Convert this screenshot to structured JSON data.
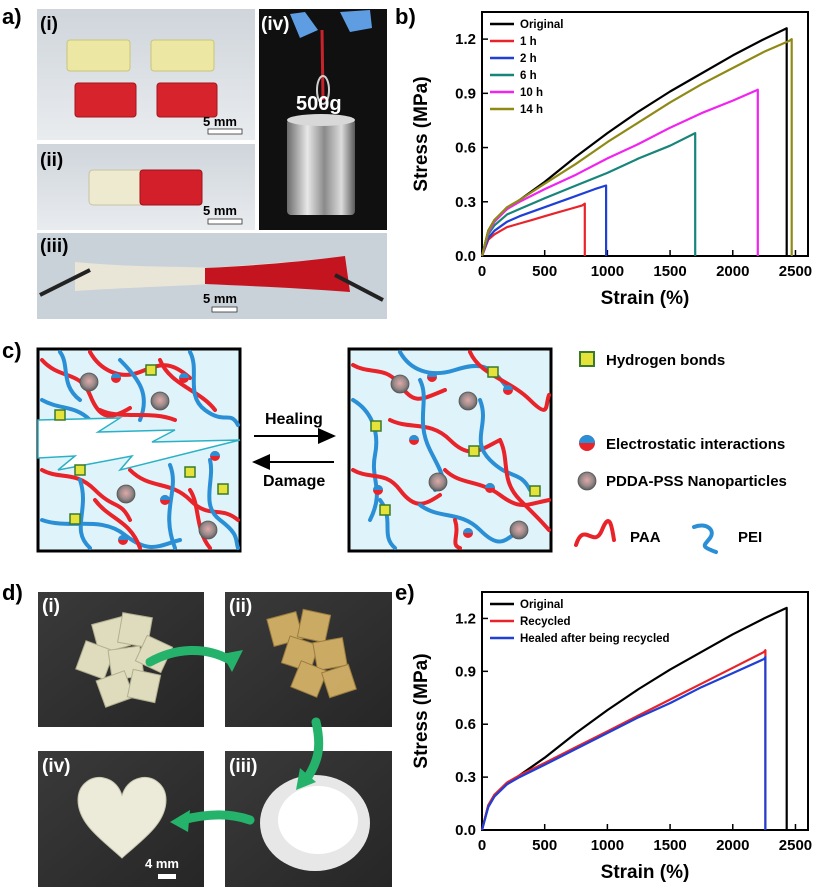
{
  "panels": {
    "a": {
      "label": "a)",
      "sub": [
        "(i)",
        "(ii)",
        "(iii)",
        "(iv)"
      ],
      "scale_i": "5 mm",
      "scale_ii": "5 mm",
      "scale_iii": "5 mm",
      "weight": "500g"
    },
    "b": {
      "label": "b)"
    },
    "c": {
      "label": "c)",
      "healing": "Healing",
      "damage": "Damage",
      "legend": {
        "hbond": "Hydrogen bonds",
        "electro": "Electrostatic interactions",
        "nano": "PDDA-PSS Nanoparticles",
        "paa": "PAA",
        "pei": "PEI"
      }
    },
    "d": {
      "label": "d)",
      "sub": [
        "(i)",
        "(ii)",
        "(iii)",
        "(iv)"
      ],
      "scale": "4 mm"
    },
    "e": {
      "label": "e)"
    }
  },
  "colors": {
    "paa": "#e8232a",
    "pei": "#2b8fd6",
    "network_bg": "#dff3fa",
    "hbond": "#e5e33a"
  },
  "chart_data": [
    {
      "type": "line",
      "panel": "b",
      "xlabel": "Strain (%)",
      "ylabel": "Stress (MPa)",
      "xlim": [
        0,
        2600
      ],
      "ylim": [
        0,
        1.35
      ],
      "xticks": [
        0,
        500,
        1000,
        1500,
        2000,
        2500
      ],
      "yticks": [
        0.0,
        0.3,
        0.6,
        0.9,
        1.2
      ],
      "legend_position": "top-left",
      "series": [
        {
          "name": "Original",
          "color": "#000000",
          "x": [
            0,
            50,
            100,
            200,
            300,
            500,
            750,
            1000,
            1250,
            1500,
            1750,
            2000,
            2250,
            2400,
            2430,
            2430
          ],
          "y": [
            0,
            0.14,
            0.2,
            0.26,
            0.31,
            0.41,
            0.55,
            0.68,
            0.8,
            0.91,
            1.01,
            1.11,
            1.2,
            1.25,
            1.26,
            0
          ]
        },
        {
          "name": "1 h",
          "color": "#e8232a",
          "x": [
            0,
            50,
            100,
            200,
            300,
            400,
            500,
            600,
            700,
            800,
            820,
            820
          ],
          "y": [
            0,
            0.09,
            0.12,
            0.16,
            0.18,
            0.2,
            0.22,
            0.24,
            0.26,
            0.28,
            0.29,
            0
          ]
        },
        {
          "name": "2 h",
          "color": "#1f3fd6",
          "x": [
            0,
            50,
            100,
            200,
            300,
            500,
            700,
            900,
            990,
            990
          ],
          "y": [
            0,
            0.1,
            0.14,
            0.19,
            0.22,
            0.27,
            0.32,
            0.37,
            0.39,
            0
          ]
        },
        {
          "name": "6 h",
          "color": "#17857a",
          "x": [
            0,
            50,
            100,
            200,
            300,
            500,
            750,
            1000,
            1250,
            1500,
            1700,
            1700
          ],
          "y": [
            0,
            0.12,
            0.17,
            0.23,
            0.26,
            0.32,
            0.39,
            0.46,
            0.54,
            0.61,
            0.68,
            0
          ]
        },
        {
          "name": "10 h",
          "color": "#f023f0",
          "x": [
            0,
            50,
            100,
            200,
            300,
            500,
            750,
            1000,
            1250,
            1500,
            1750,
            2000,
            2200,
            2200
          ],
          "y": [
            0,
            0.13,
            0.19,
            0.26,
            0.3,
            0.37,
            0.45,
            0.54,
            0.62,
            0.71,
            0.79,
            0.86,
            0.92,
            0
          ]
        },
        {
          "name": "14 h",
          "color": "#8f8a16",
          "x": [
            0,
            50,
            100,
            200,
            300,
            500,
            750,
            1000,
            1250,
            1500,
            1750,
            2000,
            2250,
            2450,
            2470,
            2470
          ],
          "y": [
            0,
            0.14,
            0.2,
            0.27,
            0.31,
            0.4,
            0.51,
            0.63,
            0.74,
            0.85,
            0.95,
            1.04,
            1.13,
            1.19,
            1.2,
            0
          ]
        }
      ]
    },
    {
      "type": "line",
      "panel": "e",
      "xlabel": "Strain (%)",
      "ylabel": "Stress (MPa)",
      "xlim": [
        0,
        2600
      ],
      "ylim": [
        0,
        1.35
      ],
      "xticks": [
        0,
        500,
        1000,
        1500,
        2000,
        2500
      ],
      "yticks": [
        0.0,
        0.3,
        0.6,
        0.9,
        1.2
      ],
      "legend_position": "top-left",
      "series": [
        {
          "name": "Original",
          "color": "#000000",
          "x": [
            0,
            50,
            100,
            200,
            300,
            500,
            750,
            1000,
            1250,
            1500,
            1750,
            2000,
            2250,
            2400,
            2430,
            2430
          ],
          "y": [
            0,
            0.14,
            0.2,
            0.26,
            0.31,
            0.41,
            0.55,
            0.68,
            0.8,
            0.91,
            1.01,
            1.11,
            1.2,
            1.25,
            1.26,
            0
          ]
        },
        {
          "name": "Recycled",
          "color": "#e8232a",
          "x": [
            0,
            50,
            100,
            200,
            300,
            500,
            750,
            1000,
            1250,
            1500,
            1750,
            2000,
            2250,
            2260,
            2260
          ],
          "y": [
            0,
            0.14,
            0.2,
            0.27,
            0.31,
            0.38,
            0.47,
            0.56,
            0.65,
            0.74,
            0.83,
            0.92,
            1.01,
            1.02,
            0
          ]
        },
        {
          "name": "Healed after being recycled",
          "color": "#1f3fd6",
          "x": [
            0,
            50,
            100,
            200,
            300,
            500,
            750,
            1000,
            1250,
            1500,
            1750,
            2000,
            2250,
            2260,
            2260
          ],
          "y": [
            0,
            0.13,
            0.19,
            0.26,
            0.3,
            0.37,
            0.46,
            0.55,
            0.64,
            0.72,
            0.81,
            0.89,
            0.97,
            0.98,
            0
          ]
        }
      ]
    }
  ]
}
